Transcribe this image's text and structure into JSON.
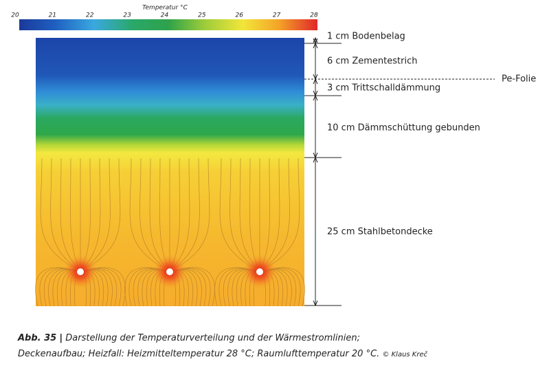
{
  "colorbar": {
    "title": "Temperatur °C",
    "ticks": [
      20,
      21,
      22,
      23,
      24,
      25,
      26,
      27,
      28
    ]
  },
  "layers": [
    "1 cm Bodenbelag",
    "6 cm Zementestrich",
    "3 cm Trittschalldämmung",
    "10 cm Dämmschüttung gebunden",
    "25 cm Stahlbetondecke"
  ],
  "foil": "Pe-Folie",
  "caption": {
    "label": "Abb. 35",
    "separator": "|",
    "lines": [
      "Darstellung der Temperaturverteilung und der Wärmestromlinien;",
      "Deckenaufbau; Heizfall: Heizmitteltemperatur 28 °C; Raumlufttemperatur 20 °C."
    ],
    "credit": "© Klaus Kreč"
  }
}
